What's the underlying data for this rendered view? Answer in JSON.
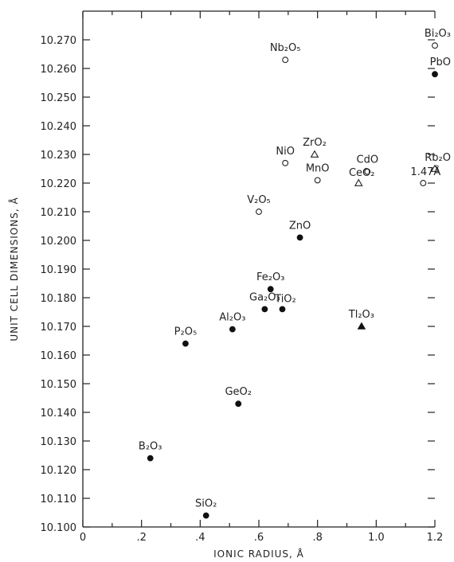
{
  "chart_data": {
    "type": "scatter",
    "title": "",
    "xlabel": "IONIC RADIUS, Å",
    "ylabel": "UNIT CELL DIMENSIONS, Å",
    "xlim": [
      0,
      1.2
    ],
    "ylim": [
      10.1,
      10.28
    ],
    "grid": false,
    "x_ticks": [
      0,
      0.2,
      0.4,
      0.6,
      0.8,
      1.0,
      1.2
    ],
    "x_tick_labels": [
      "0",
      ".2",
      ".4",
      ".6",
      ".8",
      "1.0",
      "1.2"
    ],
    "y_ticks": [
      10.1,
      10.11,
      10.12,
      10.13,
      10.14,
      10.15,
      10.16,
      10.17,
      10.18,
      10.19,
      10.2,
      10.21,
      10.22,
      10.23,
      10.24,
      10.25,
      10.26,
      10.27
    ],
    "y_tick_labels": [
      "10.100",
      "10.110",
      "10.120",
      "10.130",
      "10.140",
      "10.150",
      "10.160",
      "10.170",
      "10.180",
      "10.190",
      "10.200",
      "10.210",
      "10.220",
      "10.230",
      "10.240",
      "10.250",
      "10.260",
      "10.270"
    ],
    "points": [
      {
        "label": "Bi₂O₃",
        "x": 1.2,
        "y": 10.268,
        "marker": "open-circle",
        "label_pos": "above"
      },
      {
        "label": "Nb₂O₅",
        "x": 0.69,
        "y": 10.263,
        "marker": "open-circle",
        "label_pos": "above"
      },
      {
        "label": "PbO",
        "x": 1.2,
        "y": 10.258,
        "marker": "filled-circle",
        "label_pos": "above"
      },
      {
        "label": "ZrO₂",
        "x": 0.79,
        "y": 10.23,
        "marker": "open-triangle",
        "label_pos": "above"
      },
      {
        "label": "NiO",
        "x": 0.69,
        "y": 10.227,
        "marker": "open-circle",
        "label_pos": "above"
      },
      {
        "label": "MnO",
        "x": 0.8,
        "y": 10.221,
        "marker": "open-circle",
        "label_pos": "above"
      },
      {
        "label": "CdO",
        "x": 0.97,
        "y": 10.224,
        "marker": "open-circle",
        "label_pos": "above"
      },
      {
        "label": "CeO₂",
        "x": 0.94,
        "y": 10.22,
        "marker": "open-triangle",
        "label_pos": "above-right"
      },
      {
        "label": "Rb₂O",
        "x": 1.2,
        "y": 10.225,
        "marker": "open-triangle",
        "label_pos": "above-left"
      },
      {
        "label": "1.47Å",
        "x": 1.16,
        "y": 10.22,
        "marker": "open-circle",
        "label_pos": "above-left"
      },
      {
        "label": "V₂O₅",
        "x": 0.6,
        "y": 10.21,
        "marker": "open-circle",
        "label_pos": "above"
      },
      {
        "label": "ZnO",
        "x": 0.74,
        "y": 10.201,
        "marker": "filled-circle",
        "label_pos": "above"
      },
      {
        "label": "Fe₂O₃",
        "x": 0.64,
        "y": 10.183,
        "marker": "filled-circle",
        "label_pos": "above"
      },
      {
        "label": "Ga₂O₃",
        "x": 0.62,
        "y": 10.176,
        "marker": "filled-circle",
        "label_pos": "above"
      },
      {
        "label": "TiO₂",
        "x": 0.68,
        "y": 10.176,
        "marker": "filled-circle",
        "label_pos": "above-right"
      },
      {
        "label": "Al₂O₃",
        "x": 0.51,
        "y": 10.169,
        "marker": "filled-circle",
        "label_pos": "above"
      },
      {
        "label": "Tl₂O₃",
        "x": 0.95,
        "y": 10.17,
        "marker": "filled-triangle",
        "label_pos": "above"
      },
      {
        "label": "P₂O₅",
        "x": 0.35,
        "y": 10.164,
        "marker": "filled-circle",
        "label_pos": "above"
      },
      {
        "label": "GeO₂",
        "x": 0.53,
        "y": 10.143,
        "marker": "filled-circle",
        "label_pos": "above"
      },
      {
        "label": "B₂O₃",
        "x": 0.23,
        "y": 10.124,
        "marker": "filled-circle",
        "label_pos": "above"
      },
      {
        "label": "SiO₂",
        "x": 0.42,
        "y": 10.104,
        "marker": "filled-circle",
        "label_pos": "above"
      }
    ]
  }
}
